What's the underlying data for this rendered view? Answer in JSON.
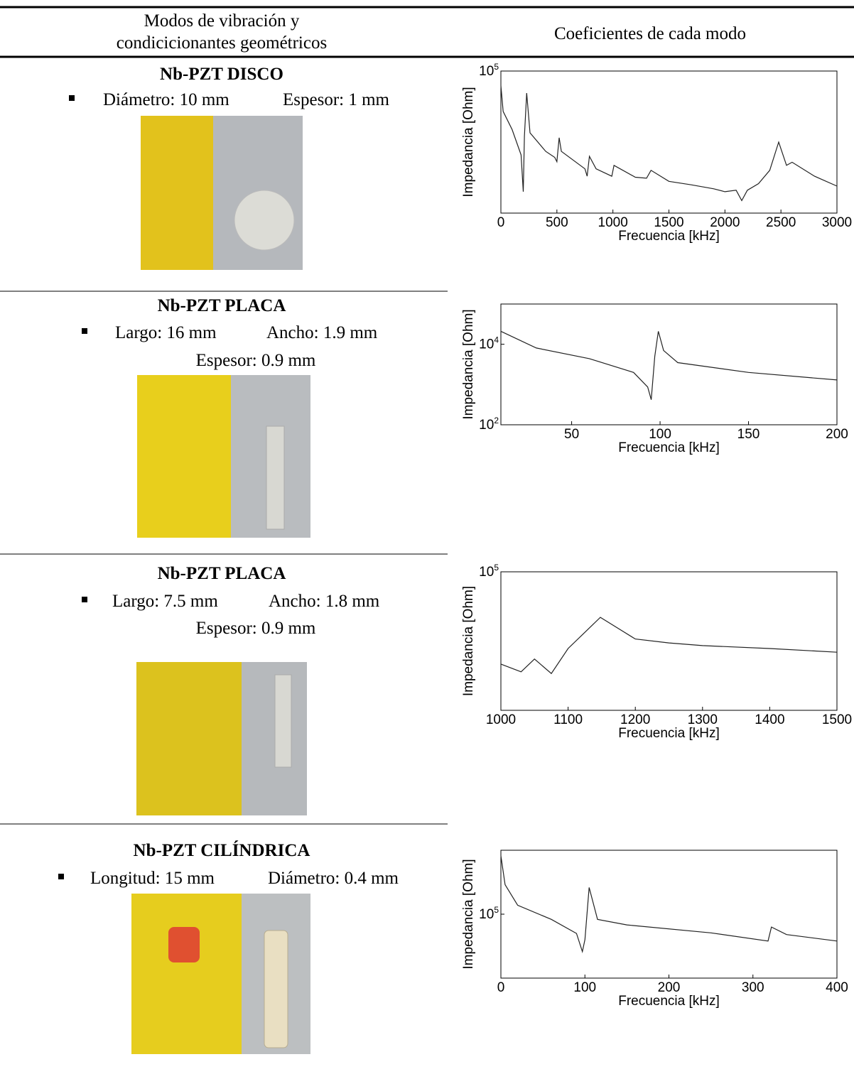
{
  "table": {
    "header": {
      "col1": [
        "Modos de vibración y",
        "condicicionantes geométricos"
      ],
      "col2": "Coeficientes de cada modo"
    },
    "rows": [
      {
        "title": "Nb-PZT DISCO",
        "specs": [
          "Diámetro: 10 mm",
          "Espesor: 1 mm"
        ]
      },
      {
        "title": "Nb-PZT PLACA",
        "specs": [
          "Largo: 16 mm",
          "Ancho: 1.9 mm",
          "Espesor: 0.9 mm"
        ]
      },
      {
        "title": "Nb-PZT PLACA",
        "specs": [
          "Largo: 7.5 mm",
          "Ancho: 1.8 mm",
          "Espesor: 0.9 mm"
        ]
      },
      {
        "title": "Nb-PZT CILÍNDRICA",
        "specs": [
          "Longitud: 15 mm",
          "Diámetro: 0.4 mm"
        ]
      }
    ]
  },
  "chart_data": [
    {
      "type": "line",
      "xlabel": "Frecuencia [kHz]",
      "ylabel": "Impedancia [Ohm]",
      "log_y": true,
      "color": "#222222",
      "xlim": [
        0,
        3000
      ],
      "xticks": [
        0,
        500,
        1000,
        1500,
        2000,
        2500,
        3000
      ],
      "ylim": [
        1000,
        100000
      ],
      "yticks": [
        {
          "value": 100000,
          "label": "10^5"
        }
      ],
      "x": [
        0,
        20,
        100,
        180,
        200,
        210,
        230,
        260,
        400,
        480,
        500,
        520,
        540,
        750,
        770,
        790,
        850,
        990,
        1010,
        1200,
        1300,
        1340,
        1500,
        1700,
        1900,
        2000,
        2100,
        2150,
        2200,
        2300,
        2400,
        2480,
        2550,
        2600,
        2800,
        3000
      ],
      "values": [
        62000,
        27000,
        15000,
        6600,
        2000,
        12000,
        49000,
        13500,
        7400,
        6100,
        5300,
        11500,
        7400,
        4200,
        3300,
        6300,
        4200,
        3300,
        4700,
        3200,
        3100,
        4000,
        2800,
        2500,
        2200,
        2000,
        2100,
        1500,
        2100,
        2600,
        4000,
        10000,
        4700,
        5200,
        3300,
        2400
      ]
    },
    {
      "type": "line",
      "xlabel": "Frecuencia [kHz]",
      "ylabel": "Impedancia [Ohm]",
      "log_y": true,
      "color": "#222222",
      "xlim": [
        10,
        200
      ],
      "xticks": [
        50,
        100,
        150,
        200
      ],
      "ylim": [
        100,
        100000
      ],
      "yticks": [
        {
          "value": 100,
          "label": "10^2"
        },
        {
          "value": 10000,
          "label": "10^4"
        }
      ],
      "x": [
        10,
        30,
        60,
        85,
        93,
        95,
        97,
        99,
        102,
        110,
        150,
        200
      ],
      "values": [
        21000,
        8100,
        4400,
        2000,
        870,
        420,
        5000,
        21000,
        7000,
        3500,
        2000,
        1300
      ]
    },
    {
      "type": "line",
      "xlabel": "Frecuencia [kHz]",
      "ylabel": "Impedancia [Ohm]",
      "log_y": true,
      "color": "#222222",
      "xlim": [
        1000,
        1500
      ],
      "xticks": [
        1000,
        1100,
        1200,
        1300,
        1400,
        1500
      ],
      "ylim": [
        1000,
        100000
      ],
      "yticks": [
        {
          "value": 100000,
          "label": "10^5"
        }
      ],
      "x": [
        1000,
        1030,
        1050,
        1075,
        1100,
        1148,
        1200,
        1250,
        1300,
        1400,
        1500
      ],
      "values": [
        4650,
        3600,
        5500,
        3400,
        7800,
        22000,
        10700,
        9400,
        8600,
        7800,
        6900
      ]
    },
    {
      "type": "line",
      "xlabel": "Frecuencia [kHz]",
      "ylabel": "Impedancia [Ohm]",
      "log_y": true,
      "color": "#222222",
      "xlim": [
        0,
        400
      ],
      "xticks": [
        0,
        100,
        200,
        300,
        400
      ],
      "ylim": [
        10000,
        1000000
      ],
      "yticks": [
        {
          "value": 100000,
          "label": "10^5"
        }
      ],
      "x": [
        0,
        5,
        20,
        60,
        90,
        97,
        100,
        105,
        115,
        150,
        250,
        318,
        322,
        340,
        400
      ],
      "values": [
        820000,
        290000,
        138000,
        83000,
        50000,
        26000,
        40000,
        262000,
        83000,
        68000,
        51000,
        38000,
        63000,
        48000,
        38000
      ]
    }
  ]
}
